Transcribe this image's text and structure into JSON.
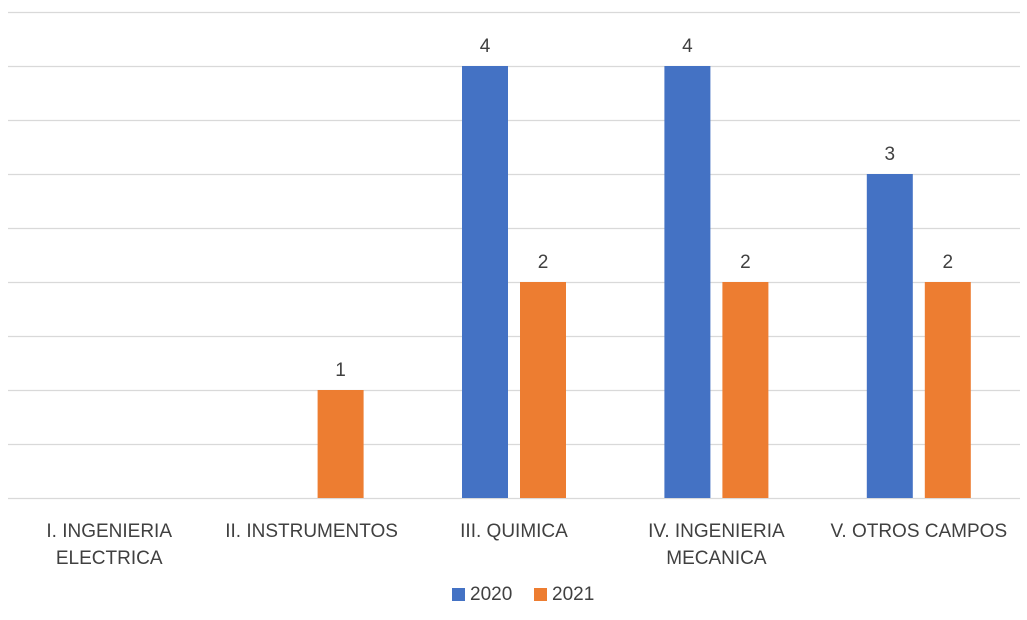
{
  "chart_data": {
    "type": "bar",
    "categories": [
      [
        "I. INGENIERIA",
        "ELECTRICA"
      ],
      [
        "II. INSTRUMENTOS"
      ],
      [
        "III. QUIMICA"
      ],
      [
        "IV. INGENIERIA",
        "MECANICA"
      ],
      [
        "V. OTROS CAMPOS"
      ]
    ],
    "series": [
      {
        "name": "2020",
        "color": "#4472C4",
        "values": [
          null,
          null,
          4,
          4,
          3
        ]
      },
      {
        "name": "2021",
        "color": "#ED7D31",
        "values": [
          null,
          1,
          2,
          2,
          2
        ]
      }
    ],
    "title": "",
    "xlabel": "",
    "ylabel": "",
    "ylim": [
      0,
      4.5
    ],
    "grid": true,
    "legend_position": "bottom-center"
  }
}
